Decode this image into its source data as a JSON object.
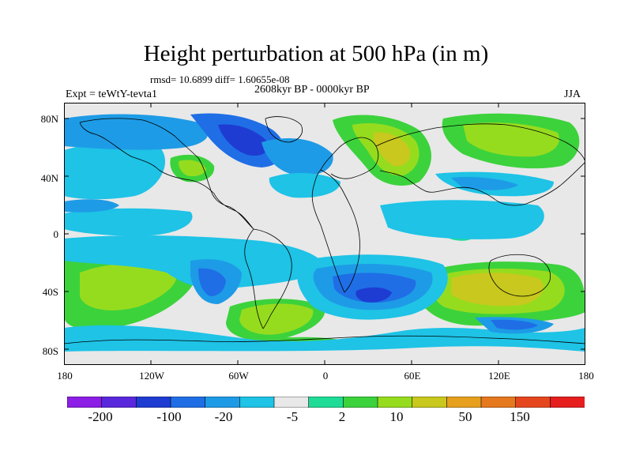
{
  "title": "Height perturbation at 500 hPa (in m)",
  "stats": "rmsd= 10.6899 diff= 1.60655e-08",
  "experiment": "Expt = teWtY-tevta1",
  "period": "2608kyr BP - 0000kyr BP",
  "season": "JJA",
  "lat_labels": [
    "80N",
    "40N",
    "0",
    "40S",
    "80S"
  ],
  "lon_labels": [
    "180",
    "120W",
    "60W",
    "0",
    "60E",
    "120E",
    "180"
  ],
  "colorbar": {
    "colors": [
      "#8c1ee6",
      "#5a28dc",
      "#1e3cd2",
      "#1f6ee6",
      "#1e9be6",
      "#1ec3e6",
      "#e8e8e8",
      "#1edc96",
      "#3cd23c",
      "#96dc1e",
      "#c8c81e",
      "#e6a01e",
      "#e6781e",
      "#e6461e",
      "#e61e1e"
    ],
    "labels": [
      "-200",
      "-100",
      "-20",
      "-5",
      "2",
      "10",
      "50",
      "150"
    ]
  },
  "field_colors": {
    "background": "#e8e8e8",
    "coast": "#000000"
  }
}
